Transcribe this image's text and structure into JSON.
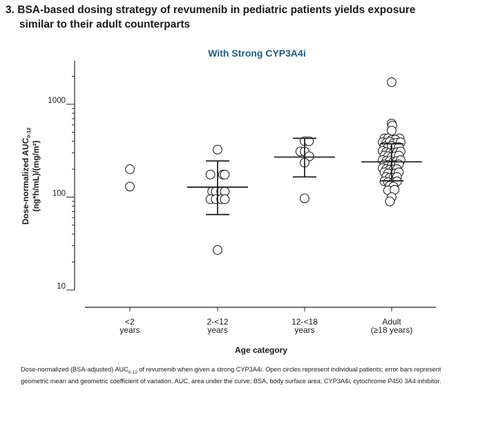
{
  "figure": {
    "title_number": "3.",
    "title_line1": "BSA-based dosing strategy of revumenib in pediatric patients yields exposure",
    "title_line2": "similar to their adult counterparts",
    "caption_a": "Dose-normalized (BSA-adjusted) AUC",
    "caption_sub": "0-12",
    "caption_b": " of revumenib when given a strong CYP3A4i. Open circles represent individual patients; error bars represent geometric mean and geometric coefficient of variation. AUC, area under the curve; BSA, body surface area; CYP3A4i, cytochrome P450 3A4 inhibitor."
  },
  "chart_data": {
    "type": "scatter",
    "title": "With Strong CYP3A4i",
    "ylabel_line1": "Dose-normalized AUC",
    "ylabel_sub": "0-12",
    "ylabel_line2": "(ng*h/mL)/(mg/m²)",
    "xlabel": "Age category",
    "yscale": "log",
    "ylim": [
      10,
      2200
    ],
    "yticks": [
      10,
      100,
      1000
    ],
    "ytick_labels": [
      "10",
      "100",
      "1000"
    ],
    "categories": [
      {
        "name": "<2",
        "sub": "years"
      },
      {
        "name": "2-<12",
        "sub": "years"
      },
      {
        "name": "12-<18",
        "sub": "years"
      },
      {
        "name": "Adult",
        "sub": "(≥18 years)"
      }
    ],
    "series": [
      {
        "name": "<2 years",
        "points": [
          [
            0,
            200
          ],
          [
            0,
            130
          ]
        ]
      },
      {
        "name": "2-<12 years",
        "points": [
          [
            -0.2,
            175
          ],
          [
            0,
            325
          ],
          [
            0.15,
            175
          ],
          [
            0.2,
            175
          ],
          [
            -0.15,
            115
          ],
          [
            -0.05,
            115
          ],
          [
            0.1,
            115
          ],
          [
            0.2,
            115
          ],
          [
            -0.2,
            95
          ],
          [
            -0.05,
            95
          ],
          [
            0.1,
            95
          ],
          [
            0.2,
            95
          ],
          [
            0,
            27
          ]
        ],
        "mean": 128,
        "err_low": 65,
        "err_high": 245
      },
      {
        "name": "12-<18 years",
        "points": [
          [
            0,
            400
          ],
          [
            0.12,
            400
          ],
          [
            -0.12,
            310
          ],
          [
            0,
            310
          ],
          [
            0.13,
            275
          ],
          [
            0,
            235
          ],
          [
            0,
            97
          ]
        ],
        "mean": 270,
        "err_low": 165,
        "err_high": 430
      },
      {
        "name": "Adult (≥18 years)",
        "points": [
          [
            0,
            1730
          ],
          [
            0,
            620
          ],
          [
            0.02,
            590
          ],
          [
            0,
            520
          ],
          [
            0.22,
            430
          ],
          [
            -0.2,
            430
          ],
          [
            -0.1,
            430
          ],
          [
            0,
            415
          ],
          [
            0.1,
            415
          ],
          [
            -0.25,
            390
          ],
          [
            -0.15,
            385
          ],
          [
            -0.05,
            395
          ],
          [
            0.05,
            380
          ],
          [
            0.15,
            385
          ],
          [
            0.25,
            390
          ],
          [
            -0.2,
            350
          ],
          [
            -0.1,
            345
          ],
          [
            0,
            355
          ],
          [
            0.1,
            345
          ],
          [
            0.2,
            345
          ],
          [
            -0.25,
            315
          ],
          [
            -0.15,
            305
          ],
          [
            -0.05,
            300
          ],
          [
            0.05,
            300
          ],
          [
            0.15,
            305
          ],
          [
            0.25,
            310
          ],
          [
            -0.2,
            280
          ],
          [
            -0.1,
            275
          ],
          [
            0,
            270
          ],
          [
            0.1,
            275
          ],
          [
            0.2,
            280
          ],
          [
            -0.25,
            250
          ],
          [
            -0.15,
            245
          ],
          [
            -0.05,
            245
          ],
          [
            0.05,
            240
          ],
          [
            0.15,
            245
          ],
          [
            0.25,
            250
          ],
          [
            -0.2,
            225
          ],
          [
            -0.1,
            222
          ],
          [
            0,
            220
          ],
          [
            0.1,
            222
          ],
          [
            0.2,
            225
          ],
          [
            -0.25,
            205
          ],
          [
            -0.15,
            200
          ],
          [
            -0.05,
            198
          ],
          [
            0.05,
            198
          ],
          [
            0.15,
            200
          ],
          [
            -0.2,
            185
          ],
          [
            -0.1,
            180
          ],
          [
            0.1,
            180
          ],
          [
            0.2,
            185
          ],
          [
            -0.15,
            165
          ],
          [
            -0.05,
            162
          ],
          [
            0.05,
            162
          ],
          [
            0.15,
            165
          ],
          [
            -0.2,
            148
          ],
          [
            -0.1,
            145
          ],
          [
            0.05,
            145
          ],
          [
            0.15,
            148
          ],
          [
            -0.05,
            133
          ],
          [
            0.05,
            130
          ],
          [
            -0.1,
            118
          ],
          [
            0.08,
            120
          ],
          [
            0,
            100
          ],
          [
            -0.05,
            90
          ]
        ],
        "mean": 240,
        "err_low": 150,
        "err_high": 375
      }
    ]
  }
}
